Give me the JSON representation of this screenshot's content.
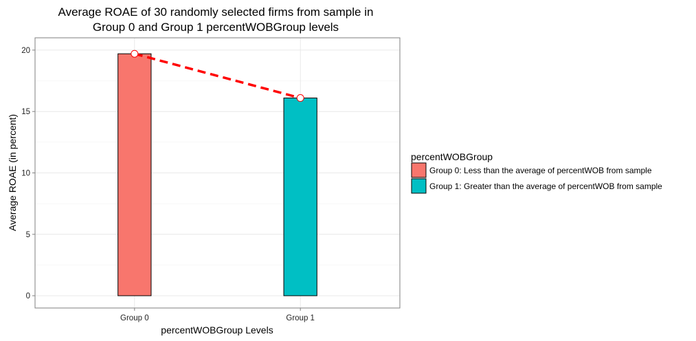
{
  "chart_data": {
    "type": "bar",
    "title_line1": "Average ROAE of 30 randomly selected firms from sample in",
    "title_line2": "Group 0 and Group 1 percentWOBGroup levels",
    "xlabel": "percentWOBGroup Levels",
    "ylabel": "Average ROAE (in percent)",
    "categories": [
      "Group 0",
      "Group 1"
    ],
    "values": [
      19.7,
      16.1
    ],
    "colors": [
      "#F8766D",
      "#00BFC4"
    ],
    "ylim": [
      -1,
      21
    ],
    "yticks": [
      0,
      5,
      10,
      15,
      20
    ],
    "grid": true,
    "trend_line": {
      "style": "dashed",
      "color": "#FF0000",
      "points": [
        19.7,
        16.1
      ]
    },
    "legend": {
      "title": "percentWOBGroup",
      "placement": "right",
      "entries": [
        {
          "label": "Group 0: Less than the average of percentWOB from sample",
          "color": "#F8766D"
        },
        {
          "label": "Group 1: Greater than the average of percentWOB from sample",
          "color": "#00BFC4"
        }
      ]
    }
  }
}
